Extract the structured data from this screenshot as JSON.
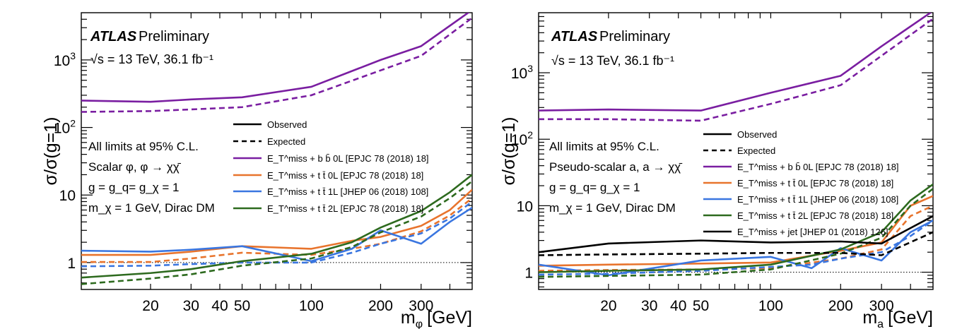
{
  "colors": {
    "bb0L": "#7a1ea1",
    "tt0L": "#e8742d",
    "tt1L": "#3a76e0",
    "tt2L": "#2d6a1e",
    "jet": "#000000",
    "reference": "#000000"
  },
  "legend_entries": {
    "observed": "Observed",
    "expected": "Expected",
    "bb0L": "E_T^miss + b b̄ 0L [EPJC 78 (2018) 18]",
    "tt0L": "E_T^miss + t t̄ 0L [EPJC 78 (2018) 18]",
    "tt1L": "E_T^miss + t t̄ 1L [JHEP 06 (2018) 108]",
    "tt2L": "E_T^miss + t t̄ 2L [EPJC 78 (2018) 18]",
    "jet": "E_T^miss + jet [JHEP 01 (2018) 126]"
  },
  "chart_data": [
    {
      "type": "line",
      "log_x": true,
      "log_y": true,
      "xlim": [
        10,
        500
      ],
      "ylim": [
        0.4,
        5000
      ],
      "x_ticks": [
        20,
        30,
        40,
        50,
        100,
        200,
        300
      ],
      "y_ticks": [
        1,
        10,
        100,
        1000
      ],
      "reference_line_y": 1,
      "grid": false,
      "title_parts": {
        "atlas": "ATLAS",
        "label": "Preliminary"
      },
      "energy_label": "√s = 13 TeV, 36.1 fb⁻¹",
      "ylabel": "σ/σ(g=1)",
      "xlabel": {
        "base": "m",
        "sub": "φ",
        "rest": "[GeV]"
      },
      "annotations": [
        "All limits at 95% C.L.",
        "Scalar φ, φ → χχ̄",
        "g = g_q= g_χ = 1",
        "m_χ = 1 GeV, Dirac DM"
      ],
      "legend_position": "center-right",
      "series": [
        {
          "key": "bb0L",
          "style": "observed",
          "x": [
            10,
            20,
            30,
            50,
            100,
            200,
            300,
            500
          ],
          "y": [
            250,
            240,
            260,
            280,
            400,
            1000,
            1600,
            5500
          ]
        },
        {
          "key": "bb0L",
          "style": "expected",
          "x": [
            10,
            20,
            30,
            50,
            100,
            200,
            300,
            500
          ],
          "y": [
            170,
            175,
            185,
            200,
            300,
            700,
            1150,
            4200
          ]
        },
        {
          "key": "tt0L",
          "style": "observed",
          "x": [
            10,
            20,
            30,
            50,
            100,
            150,
            200,
            300,
            400,
            500
          ],
          "y": [
            1.3,
            1.3,
            1.45,
            1.75,
            1.6,
            2.1,
            2.4,
            3.5,
            6,
            12
          ]
        },
        {
          "key": "tt0L",
          "style": "expected",
          "x": [
            10,
            20,
            30,
            50,
            100,
            150,
            200,
            300,
            400,
            500
          ],
          "y": [
            1.02,
            1.02,
            1.15,
            1.4,
            1.3,
            1.6,
            1.9,
            2.9,
            5,
            9
          ]
        },
        {
          "key": "tt1L",
          "style": "observed",
          "x": [
            10,
            20,
            30,
            50,
            100,
            150,
            200,
            300,
            400,
            500
          ],
          "y": [
            1.5,
            1.45,
            1.55,
            1.75,
            1.05,
            1.6,
            3.0,
            1.9,
            4,
            6.5
          ]
        },
        {
          "key": "tt1L",
          "style": "expected",
          "x": [
            10,
            20,
            30,
            50,
            100,
            150,
            200,
            300,
            400,
            500
          ],
          "y": [
            0.88,
            0.9,
            0.95,
            1.0,
            1.0,
            1.4,
            1.9,
            2.7,
            4.5,
            8
          ]
        },
        {
          "key": "tt2L",
          "style": "observed",
          "x": [
            10,
            20,
            30,
            50,
            100,
            150,
            200,
            300,
            400,
            500
          ],
          "y": [
            0.6,
            0.7,
            0.8,
            1.05,
            1.35,
            2.0,
            3.3,
            5.8,
            11,
            20
          ]
        },
        {
          "key": "tt2L",
          "style": "expected",
          "x": [
            10,
            20,
            30,
            50,
            100,
            150,
            200,
            300,
            400,
            500
          ],
          "y": [
            0.48,
            0.58,
            0.67,
            0.9,
            1.15,
            1.7,
            2.8,
            4.8,
            9,
            16
          ]
        }
      ]
    },
    {
      "type": "line",
      "log_x": true,
      "log_y": true,
      "xlim": [
        10,
        500
      ],
      "ylim": [
        0.55,
        8000
      ],
      "x_ticks": [
        20,
        30,
        40,
        50,
        100,
        200,
        300
      ],
      "y_ticks": [
        1,
        10,
        100,
        1000
      ],
      "reference_line_y": 1,
      "grid": false,
      "title_parts": {
        "atlas": "ATLAS",
        "label": "Preliminary"
      },
      "energy_label": "√s = 13 TeV, 36.1 fb⁻¹",
      "ylabel": "σ/σ(g=1)",
      "xlabel": {
        "base": "m",
        "sub": "a",
        "rest": "[GeV]"
      },
      "annotations": [
        "All limits at 95% C.L.",
        "Pseudo-scalar a, a → χχ̄",
        "g = g_q= g_χ = 1",
        "m_χ = 1 GeV, Dirac DM"
      ],
      "legend_position": "center-right",
      "series": [
        {
          "key": "bb0L",
          "style": "observed",
          "x": [
            10,
            20,
            50,
            100,
            200,
            300,
            500
          ],
          "y": [
            270,
            280,
            270,
            500,
            900,
            2500,
            8500
          ]
        },
        {
          "key": "bb0L",
          "style": "expected",
          "x": [
            10,
            20,
            50,
            100,
            200,
            300,
            500
          ],
          "y": [
            200,
            200,
            190,
            340,
            650,
            1800,
            6500
          ]
        },
        {
          "key": "tt0L",
          "style": "observed",
          "x": [
            10,
            20,
            50,
            100,
            200,
            300,
            400,
            500
          ],
          "y": [
            1.25,
            1.3,
            1.35,
            1.4,
            2.1,
            2.8,
            10,
            14
          ]
        },
        {
          "key": "tt0L",
          "style": "expected",
          "x": [
            10,
            20,
            50,
            100,
            200,
            300,
            400,
            500
          ],
          "y": [
            1.05,
            1.08,
            1.1,
            1.15,
            1.6,
            2.2,
            7,
            10
          ]
        },
        {
          "key": "tt1L",
          "style": "observed",
          "x": [
            10,
            20,
            50,
            100,
            150,
            200,
            300,
            400,
            500
          ],
          "y": [
            1.3,
            0.9,
            1.5,
            1.7,
            1.15,
            2.3,
            1.5,
            4,
            6
          ]
        },
        {
          "key": "tt1L",
          "style": "expected",
          "x": [
            10,
            20,
            50,
            100,
            150,
            200,
            300,
            400,
            500
          ],
          "y": [
            0.92,
            0.95,
            1.05,
            1.2,
            1.3,
            1.6,
            2.0,
            3.5,
            6
          ]
        },
        {
          "key": "tt2L",
          "style": "observed",
          "x": [
            10,
            20,
            50,
            100,
            200,
            300,
            400,
            500
          ],
          "y": [
            1.0,
            1.05,
            1.1,
            1.3,
            2.2,
            4,
            12,
            21
          ]
        },
        {
          "key": "tt2L",
          "style": "expected",
          "x": [
            10,
            20,
            50,
            100,
            200,
            300,
            400,
            500
          ],
          "y": [
            0.85,
            0.88,
            0.92,
            1.1,
            1.9,
            3.3,
            10,
            18
          ]
        },
        {
          "key": "jet",
          "style": "observed",
          "x": [
            10,
            20,
            50,
            100,
            200,
            300,
            500
          ],
          "y": [
            2.0,
            2.7,
            3.0,
            2.8,
            2.9,
            2.7,
            7
          ]
        },
        {
          "key": "jet",
          "style": "expected",
          "x": [
            10,
            20,
            50,
            100,
            200,
            300,
            500
          ],
          "y": [
            1.8,
            1.85,
            1.9,
            1.95,
            1.95,
            1.8,
            4
          ]
        }
      ]
    }
  ]
}
